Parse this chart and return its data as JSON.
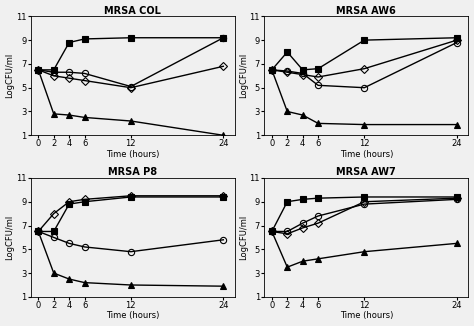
{
  "time": [
    0,
    2,
    4,
    6,
    12,
    24
  ],
  "panels": [
    {
      "title": "MRSA COL",
      "series": [
        {
          "marker": "s",
          "fillstyle": "full",
          "color": "black",
          "lw": 1.0,
          "y": [
            6.5,
            6.5,
            8.8,
            9.1,
            9.2,
            9.2
          ]
        },
        {
          "marker": "o",
          "fillstyle": "none",
          "color": "black",
          "lw": 1.0,
          "y": [
            6.5,
            6.3,
            6.3,
            6.2,
            5.1,
            9.2
          ]
        },
        {
          "marker": "D",
          "fillstyle": "none",
          "color": "black",
          "lw": 1.0,
          "y": [
            6.5,
            6.0,
            5.8,
            5.6,
            5.0,
            6.8
          ]
        },
        {
          "marker": "^",
          "fillstyle": "full",
          "color": "black",
          "lw": 1.0,
          "y": [
            6.5,
            2.8,
            2.7,
            2.5,
            2.2,
            1.0
          ]
        }
      ]
    },
    {
      "title": "MRSA AW6",
      "series": [
        {
          "marker": "s",
          "fillstyle": "full",
          "color": "black",
          "lw": 1.0,
          "y": [
            6.5,
            8.0,
            6.5,
            6.6,
            9.0,
            9.2
          ]
        },
        {
          "marker": "o",
          "fillstyle": "none",
          "color": "black",
          "lw": 1.0,
          "y": [
            6.5,
            6.4,
            6.2,
            5.2,
            5.0,
            8.8
          ]
        },
        {
          "marker": "D",
          "fillstyle": "none",
          "color": "black",
          "lw": 1.0,
          "y": [
            6.5,
            6.3,
            6.1,
            5.9,
            6.6,
            9.0
          ]
        },
        {
          "marker": "^",
          "fillstyle": "full",
          "color": "black",
          "lw": 1.0,
          "y": [
            6.5,
            3.0,
            2.7,
            2.0,
            1.9,
            1.9
          ]
        }
      ]
    },
    {
      "title": "MRSA P8",
      "series": [
        {
          "marker": "s",
          "fillstyle": "full",
          "color": "black",
          "lw": 1.0,
          "y": [
            6.5,
            6.5,
            8.8,
            9.0,
            9.4,
            9.4
          ]
        },
        {
          "marker": "o",
          "fillstyle": "none",
          "color": "black",
          "lw": 1.0,
          "y": [
            6.5,
            6.0,
            5.5,
            5.2,
            4.8,
            5.8
          ]
        },
        {
          "marker": "D",
          "fillstyle": "none",
          "color": "black",
          "lw": 1.0,
          "y": [
            6.5,
            8.0,
            9.0,
            9.2,
            9.5,
            9.5
          ]
        },
        {
          "marker": "^",
          "fillstyle": "full",
          "color": "black",
          "lw": 1.0,
          "y": [
            6.5,
            3.0,
            2.5,
            2.2,
            2.0,
            1.9
          ]
        }
      ]
    },
    {
      "title": "MRSA AW7",
      "series": [
        {
          "marker": "s",
          "fillstyle": "full",
          "color": "black",
          "lw": 1.0,
          "y": [
            6.5,
            9.0,
            9.2,
            9.3,
            9.4,
            9.4
          ]
        },
        {
          "marker": "o",
          "fillstyle": "none",
          "color": "black",
          "lw": 1.0,
          "y": [
            6.5,
            6.5,
            7.2,
            7.8,
            8.8,
            9.2
          ]
        },
        {
          "marker": "D",
          "fillstyle": "none",
          "color": "black",
          "lw": 1.0,
          "y": [
            6.5,
            6.3,
            6.8,
            7.2,
            9.0,
            9.3
          ]
        },
        {
          "marker": "^",
          "fillstyle": "full",
          "color": "black",
          "lw": 1.0,
          "y": [
            6.5,
            3.5,
            4.0,
            4.2,
            4.8,
            5.5
          ]
        }
      ]
    }
  ],
  "ylim": [
    1,
    11
  ],
  "yticks": [
    1,
    3,
    5,
    7,
    9,
    11
  ],
  "ytick_labels": [
    "1",
    "3",
    "5",
    "7",
    "9",
    "11"
  ],
  "xticks": [
    0,
    2,
    4,
    6,
    12,
    24
  ],
  "xlabel": "Time (hours)",
  "ylabel": "LogCFU/ml",
  "bg_color": "#f0f0f0"
}
